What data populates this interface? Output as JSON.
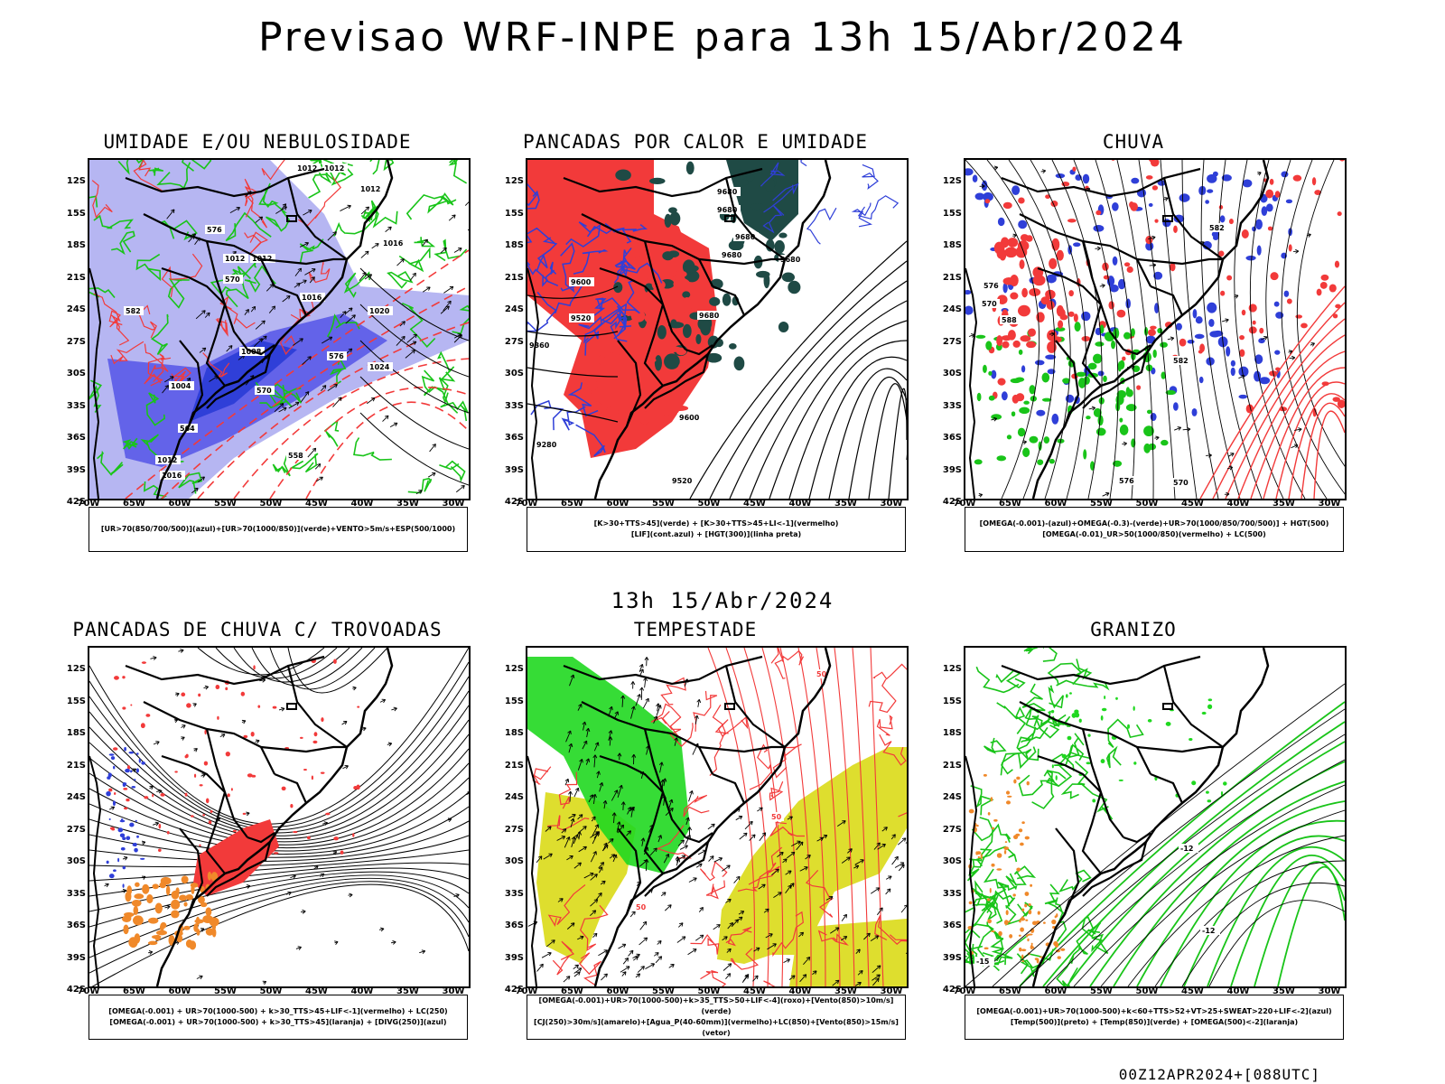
{
  "page": {
    "title": "Previsao WRF-INPE  para 13h 15/Abr/2024",
    "middle_title": "13h 15/Abr/2024",
    "footer": "00Z12APR2024+[088UTC]"
  },
  "axes": {
    "lat_labels": [
      "12S",
      "15S",
      "18S",
      "21S",
      "24S",
      "27S",
      "30S",
      "33S",
      "36S",
      "39S",
      "42S"
    ],
    "lon_labels": [
      "70W",
      "65W",
      "60W",
      "55W",
      "50W",
      "45W",
      "40W",
      "35W",
      "30W"
    ]
  },
  "colors": {
    "blue": "#2f3fd8",
    "light_blue": "#a9a9f0",
    "mid_blue": "#5f5fe8",
    "green": "#19c419",
    "dark_green": "#1f4a45",
    "red": "#f23a3a",
    "orange": "#f0892a",
    "yellow": "#dede2e",
    "bright_green": "#20d820"
  },
  "panels": [
    {
      "id": "umidade",
      "title": "UMIDADE E/OU NEBULOSIDADE",
      "legend": [
        "[UR>70(850/700/500)](azul)+[UR>70(1000/850)](verde)+VENTO>5m/s+ESP(500/1000)"
      ],
      "contour_labels": [
        "1012",
        "1012",
        "1012",
        "1016",
        "1012",
        "1012",
        "1016",
        "1020",
        "1024",
        "1008",
        "1004",
        "1012",
        "1016",
        "576",
        "576",
        "570",
        "570",
        "564",
        "558",
        "582"
      ]
    },
    {
      "id": "pancadas",
      "title": "PANCADAS POR CALOR E UMIDADE",
      "legend": [
        "[K>30+TTS>45](verde) + [K>30+TTS>45+LI<-1](vermelho)",
        "[LIF](cont.azul) + [HGT(300)](linha preta)"
      ],
      "contour_labels": [
        "9680",
        "9680",
        "9680",
        "9680",
        "9680",
        "9680",
        "9600",
        "9520",
        "9360",
        "9600",
        "9280",
        "9520"
      ]
    },
    {
      "id": "chuva",
      "title": "CHUVA",
      "legend": [
        "[OMEGA(-0.001)-(azul)+OMEGA(-0.3)-(verde)+UR>70(1000/850/700/500)] + HGT(500)",
        "[OMEGA(-0.01)_UR>50(1000/850)(vermelho) + LC(500)"
      ],
      "contour_labels": [
        "582",
        "576",
        "570",
        "588",
        "582",
        "576",
        "570"
      ]
    },
    {
      "id": "trovoadas",
      "title": "PANCADAS DE CHUVA C/ TROVOADAS",
      "legend": [
        "[OMEGA(-0.001) + UR>70(1000-500) + k>30_TTS>45+LIF<-1](vermelho) + LC(250)",
        "[OMEGA(-0.001) + UR>70(1000-500) + k>30_TTS>45](laranja) + [DIVG(250)](azul)"
      ],
      "contour_labels": []
    },
    {
      "id": "tempestade",
      "title": "TEMPESTADE",
      "legend": [
        "[OMEGA(-0.001)+UR>70(1000-500)+k>35_TTS>50+LIF<-4](roxo)+[Vento(850)>10m/s](verde)",
        "[CJ(250)>30m/s](amarelo)+[Agua_P(40-60mm)](vermelho)+LC(850)+[Vento(850)>15m/s](vetor)"
      ],
      "contour_labels": [
        "50",
        "50",
        "50"
      ]
    },
    {
      "id": "granizo",
      "title": "GRANIZO",
      "legend": [
        "[OMEGA(-0.001)+UR>70(1000-500)+k<60+TTS>52+VT>25+SWEAT>220+LIF<-2](azul)",
        "[Temp(500)](preto) + [Temp(850)](verde) + [OMEGA(500)<-2](laranja)"
      ],
      "contour_labels": [
        "-12",
        "-15",
        "-12"
      ]
    }
  ]
}
